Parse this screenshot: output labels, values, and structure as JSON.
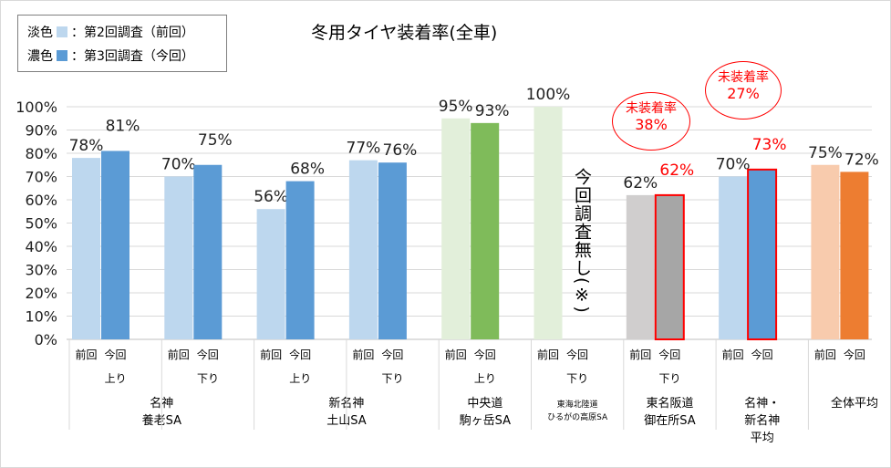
{
  "legend": {
    "light_label": "淡色",
    "light_desc": "：第2回調査（前回）",
    "dark_label": "濃色",
    "dark_desc": "：第3回調査（今回）"
  },
  "chart_data": {
    "type": "bar",
    "title": "冬用タイヤ装着率(全車)",
    "ylim": [
      0,
      100
    ],
    "yticks": [
      "0%",
      "10%",
      "20%",
      "30%",
      "40%",
      "50%",
      "60%",
      "70%",
      "80%",
      "90%",
      "100%"
    ],
    "grid": true,
    "bar_labels": [
      "前回",
      "今回"
    ],
    "groups": [
      {
        "direction": "上り",
        "location": "名神\n養老SA",
        "prev": 78,
        "curr": 81,
        "prev_color": "#bdd7ee",
        "curr_color": "#5b9bd5"
      },
      {
        "direction": "下り",
        "location": "",
        "prev": 70,
        "curr": 75,
        "prev_color": "#bdd7ee",
        "curr_color": "#5b9bd5"
      },
      {
        "direction": "上り",
        "location": "新名神\n土山SA",
        "prev": 56,
        "curr": 68,
        "prev_color": "#bdd7ee",
        "curr_color": "#5b9bd5"
      },
      {
        "direction": "下り",
        "location": "",
        "prev": 77,
        "curr": 76,
        "prev_color": "#bdd7ee",
        "curr_color": "#5b9bd5"
      },
      {
        "direction": "上り",
        "location": "中央道\n駒ヶ岳SA",
        "prev": 95,
        "curr": 93,
        "prev_color": "#e2efda",
        "curr_color": "#7fbb5a"
      },
      {
        "direction": "下り",
        "location": "東海北陸道\nひるがの高原SA",
        "prev": 100,
        "curr": null,
        "prev_color": "#e2efda",
        "curr_color": "#7fbb5a"
      },
      {
        "direction": "下り",
        "location": "東名阪道\n御在所SA",
        "prev": 62,
        "curr": 62,
        "prev_color": "#d0cece",
        "curr_color": "#a6a6a6",
        "highlight": true
      },
      {
        "direction": "",
        "location": "名神・\n新名神\n平均",
        "prev": 70,
        "curr": 73,
        "prev_color": "#bdd7ee",
        "curr_color": "#5b9bd5",
        "highlight": true
      },
      {
        "direction": "",
        "location": "全体平均",
        "prev": 75,
        "curr": 72,
        "prev_color": "#f8cbad",
        "curr_color": "#ed7d31"
      }
    ],
    "annotations": [
      {
        "text": "未装着率",
        "value": "38%"
      },
      {
        "text": "未装着率",
        "value": "27%"
      }
    ],
    "no_survey_note": "今回調査無し(※)",
    "highlight_color": "#ff0000"
  }
}
